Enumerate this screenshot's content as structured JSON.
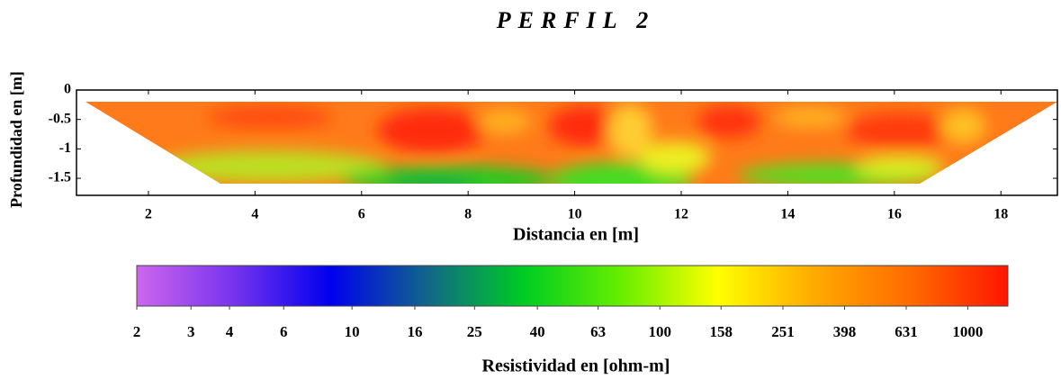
{
  "chart_data": {
    "type": "profile",
    "title": "PERFIL 2",
    "xlabel": "Distancia en [m]",
    "ylabel": "Profundidad en [m]",
    "xlim": [
      0.65,
      19.06
    ],
    "xticks": [
      2,
      4,
      6,
      8,
      10,
      12,
      14,
      16,
      18
    ],
    "ylim": [
      -1.79,
      0
    ],
    "yticks": [
      0,
      -0.5,
      -1,
      -1.5
    ],
    "colorbar": {
      "label": "Resistividad en [ohm-m]",
      "log": true,
      "lim": [
        2,
        1350
      ],
      "ticks": [
        2,
        3,
        4,
        6,
        10,
        16,
        25,
        40,
        63,
        100,
        158,
        251,
        398,
        631,
        1000
      ],
      "colors": [
        "#cc66ee",
        "#7733ee",
        "#0000ee",
        "#116688",
        "#00cc22",
        "#66ee00",
        "#ffff00",
        "#ffaa00",
        "#ff6a00",
        "#ff1500"
      ]
    }
  }
}
